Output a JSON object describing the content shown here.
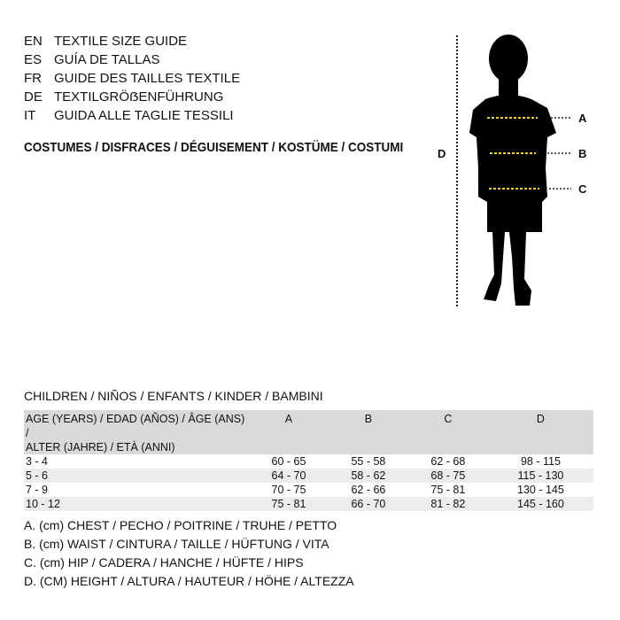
{
  "titles": [
    {
      "code": "EN",
      "text": "TEXTILE SIZE GUIDE"
    },
    {
      "code": "ES",
      "text": "GUÍA DE TALLAS"
    },
    {
      "code": "FR",
      "text": "GUIDE DES TAILLES TEXTILE"
    },
    {
      "code": "DE",
      "text": "TEXTILGRÖẞENFÜHRUNG"
    },
    {
      "code": "IT",
      "text": "GUIDA ALLE TAGLIE TESSILI"
    }
  ],
  "category": "COSTUMES / DISFRACES / DÉGUISEMENT / KOSTÜME / COSTUMI",
  "figure": {
    "labels": {
      "a": "A",
      "b": "B",
      "c": "C",
      "d": "D"
    },
    "measure_color": "#e8d21a"
  },
  "section": "CHILDREN / NIÑOS / ENFANTS / KINDER / BAMBINI",
  "table": {
    "header": {
      "age": "AGE (YEARS) / EDAD (AÑOS) / ÂGE (ANS) /\nALTER (JAHRE) / ETÀ (ANNI)",
      "cols": [
        "A",
        "B",
        "C",
        "D"
      ]
    },
    "rows": [
      {
        "age": "3 - 4",
        "vals": [
          "60 - 65",
          "55 - 58",
          "62 - 68",
          "98 - 115"
        ]
      },
      {
        "age": "5 - 6",
        "vals": [
          "64 - 70",
          "58 - 62",
          "68 - 75",
          "115 - 130"
        ]
      },
      {
        "age": "7 - 9",
        "vals": [
          "70 - 75",
          "62 - 66",
          "75 - 81",
          "130 - 145"
        ]
      },
      {
        "age": "10 - 12",
        "vals": [
          "75 - 81",
          "66 - 70",
          "81 - 82",
          "145 - 160"
        ]
      }
    ]
  },
  "legend": [
    "A. (cm) CHEST / PECHO / POITRINE / TRUHE / PETTO",
    "B. (cm) WAIST / CINTURA / TAILLE / HÜFTUNG / VITA",
    "C. (cm) HIP / CADERA / HANCHE / HÜFTE / HIPS",
    "D. (CM) HEIGHT / ALTURA / HAUTEUR / HÖHE / ALTEZZA"
  ]
}
